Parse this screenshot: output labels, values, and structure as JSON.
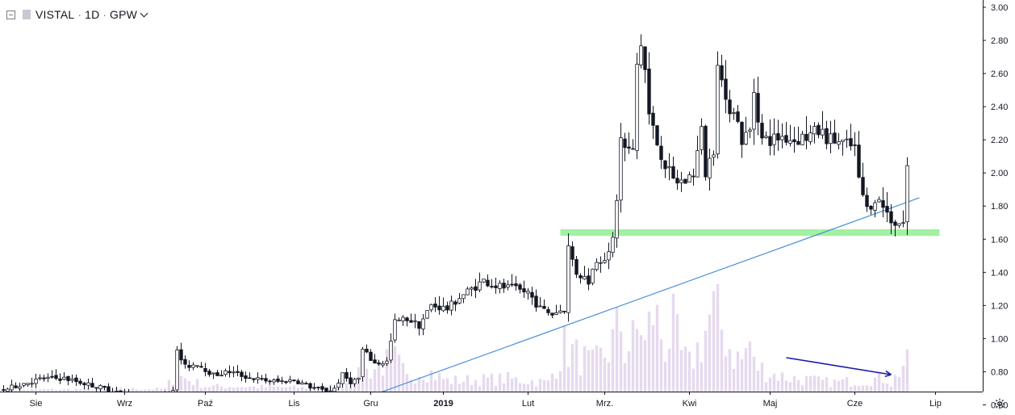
{
  "header": {
    "symbol": "VISTAL",
    "interval": "1D",
    "exchange": "GPW",
    "separator": "·"
  },
  "colors": {
    "candle_up_fill": "#ffffff",
    "candle_down_fill": "#131722",
    "candle_border": "#131722",
    "volume": "#e6d9ee",
    "trendline": "#4a90d9",
    "support_band": "#90ee90",
    "arrow": "#1a1aa8",
    "axis_text": "#131722"
  },
  "icons": {
    "settings": "gear-icon",
    "collapse": "collapse-icon"
  },
  "chart_data": {
    "type": "candlestick",
    "title": "VISTAL · 1D · GPW",
    "y_axis": {
      "min": 0.5,
      "max": 3.0,
      "ticks": [
        "3.00",
        "2.80",
        "2.60",
        "2.40",
        "2.20",
        "2.00",
        "1.80",
        "1.60",
        "1.40",
        "1.20",
        "1.00",
        "0.80",
        "0.60"
      ],
      "position": "right"
    },
    "x_axis": {
      "ticks": [
        {
          "label": "Sie",
          "index": 4
        },
        {
          "label": "Wrz",
          "index": 26
        },
        {
          "label": "Paź",
          "index": 46
        },
        {
          "label": "Lis",
          "index": 68
        },
        {
          "label": "Gru",
          "index": 87
        },
        {
          "label": "2019",
          "index": 105,
          "bold": true
        },
        {
          "label": "Lut",
          "index": 126
        },
        {
          "label": "Mrz.",
          "index": 145
        },
        {
          "label": "Kwi",
          "index": 166
        },
        {
          "label": "Maj",
          "index": 186
        },
        {
          "label": "Cze",
          "index": 207
        },
        {
          "label": "Lip",
          "index": 227
        }
      ]
    },
    "anchors": [
      [
        0,
        0.69
      ],
      [
        5,
        0.73
      ],
      [
        10,
        0.76
      ],
      [
        15,
        0.76
      ],
      [
        20,
        0.73
      ],
      [
        25,
        0.7
      ],
      [
        30,
        0.67
      ],
      [
        35,
        0.64
      ],
      [
        40,
        0.66
      ],
      [
        42,
        0.7
      ],
      [
        43,
        0.92
      ],
      [
        45,
        0.83
      ],
      [
        48,
        0.85
      ],
      [
        52,
        0.78
      ],
      [
        56,
        0.8
      ],
      [
        60,
        0.77
      ],
      [
        64,
        0.75
      ],
      [
        68,
        0.74
      ],
      [
        72,
        0.75
      ],
      [
        76,
        0.71
      ],
      [
        80,
        0.68
      ],
      [
        82,
        0.7
      ],
      [
        84,
        0.78
      ],
      [
        86,
        0.74
      ],
      [
        88,
        0.76
      ],
      [
        89,
        0.93
      ],
      [
        92,
        0.85
      ],
      [
        95,
        0.86
      ],
      [
        97,
        1.1
      ],
      [
        100,
        1.12
      ],
      [
        103,
        1.08
      ],
      [
        106,
        1.2
      ],
      [
        110,
        1.18
      ],
      [
        113,
        1.25
      ],
      [
        116,
        1.3
      ],
      [
        119,
        1.35
      ],
      [
        122,
        1.32
      ],
      [
        126,
        1.3
      ],
      [
        130,
        1.28
      ],
      [
        133,
        1.18
      ],
      [
        136,
        1.15
      ],
      [
        139,
        1.18
      ],
      [
        140,
        1.55
      ],
      [
        142,
        1.4
      ],
      [
        145,
        1.35
      ],
      [
        147,
        1.48
      ],
      [
        150,
        1.5
      ],
      [
        151,
        1.6
      ],
      [
        152,
        1.85
      ],
      [
        153,
        2.2
      ],
      [
        154,
        2.15
      ],
      [
        156,
        2.12
      ],
      [
        157,
        2.65
      ],
      [
        158,
        2.78
      ],
      [
        159,
        2.62
      ],
      [
        160,
        2.35
      ],
      [
        162,
        2.18
      ],
      [
        164,
        2.05
      ],
      [
        166,
        1.95
      ],
      [
        169,
        1.95
      ],
      [
        171,
        2.0
      ],
      [
        173,
        2.25
      ],
      [
        174,
        2.0
      ],
      [
        176,
        2.15
      ],
      [
        177,
        2.7
      ],
      [
        179,
        2.4
      ],
      [
        181,
        2.4
      ],
      [
        183,
        2.2
      ],
      [
        185,
        2.25
      ],
      [
        186,
        2.5
      ],
      [
        188,
        2.2
      ],
      [
        190,
        2.2
      ],
      [
        193,
        2.22
      ],
      [
        196,
        2.2
      ],
      [
        199,
        2.22
      ],
      [
        202,
        2.25
      ],
      [
        205,
        2.2
      ],
      [
        208,
        2.18
      ],
      [
        211,
        2.15
      ],
      [
        212,
        1.95
      ],
      [
        214,
        1.78
      ],
      [
        216,
        1.85
      ],
      [
        218,
        1.8
      ],
      [
        220,
        1.72
      ],
      [
        221,
        1.7
      ],
      [
        223,
        1.7
      ],
      [
        224,
        2.04
      ]
    ],
    "volume_anchors": [
      [
        0,
        0.02
      ],
      [
        40,
        0.03
      ],
      [
        42,
        0.15
      ],
      [
        43,
        0.18
      ],
      [
        50,
        0.06
      ],
      [
        80,
        0.04
      ],
      [
        86,
        0.12
      ],
      [
        89,
        0.2
      ],
      [
        94,
        0.3
      ],
      [
        97,
        0.35
      ],
      [
        100,
        0.15
      ],
      [
        104,
        0.25
      ],
      [
        110,
        0.12
      ],
      [
        125,
        0.14
      ],
      [
        135,
        0.1
      ],
      [
        139,
        0.5
      ],
      [
        142,
        0.4
      ],
      [
        146,
        0.3
      ],
      [
        150,
        0.45
      ],
      [
        152,
        0.65
      ],
      [
        153,
        0.75
      ],
      [
        154,
        0.45
      ],
      [
        156,
        0.55
      ],
      [
        158,
        0.75
      ],
      [
        159,
        0.5
      ],
      [
        161,
        0.9
      ],
      [
        164,
        0.5
      ],
      [
        166,
        0.7
      ],
      [
        168,
        0.4
      ],
      [
        170,
        0.3
      ],
      [
        173,
        0.55
      ],
      [
        175,
        0.8
      ],
      [
        177,
        0.9
      ],
      [
        178,
        0.7
      ],
      [
        181,
        0.4
      ],
      [
        183,
        0.35
      ],
      [
        185,
        0.55
      ],
      [
        186,
        0.3
      ],
      [
        190,
        0.2
      ],
      [
        195,
        0.15
      ],
      [
        205,
        0.1
      ],
      [
        212,
        0.12
      ],
      [
        219,
        0.15
      ],
      [
        220,
        0.08
      ],
      [
        223,
        0.3
      ]
    ],
    "volume_max": 1.0,
    "trendline": {
      "start": {
        "index": 86,
        "price": 0.61
      },
      "end": {
        "index": 227,
        "price": 1.85
      }
    },
    "support_zone": {
      "start_index": 138,
      "end_index": 232,
      "price_low": 1.62,
      "price_high": 1.66
    },
    "volume_arrow": {
      "start_index": 194,
      "end_index": 220,
      "start_level": 0.3,
      "end_level": 0.15
    },
    "grid": false,
    "legend": "none"
  }
}
